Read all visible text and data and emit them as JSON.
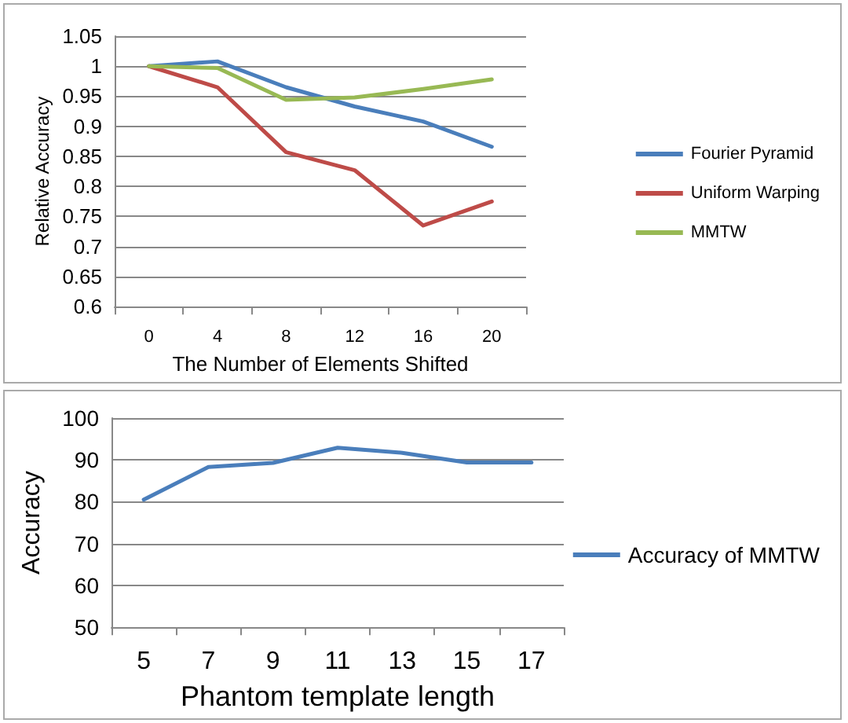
{
  "chart_data": [
    {
      "type": "line",
      "xlabel": "The Number of Elements Shifted",
      "ylabel": "Relative Accuracy",
      "categories": [
        "0",
        "4",
        "8",
        "12",
        "16",
        "20"
      ],
      "series": [
        {
          "name": "Fourier Pyramid",
          "color": "#4a7ebb",
          "values": [
            1,
            1.008,
            0.965,
            0.933,
            0.908,
            0.866
          ]
        },
        {
          "name": "Uniform Warping",
          "color": "#be4b48",
          "values": [
            1,
            0.965,
            0.857,
            0.827,
            0.735,
            0.775
          ]
        },
        {
          "name": "MMTW",
          "color": "#98b954",
          "values": [
            1,
            0.997,
            0.944,
            0.948,
            0.962,
            0.978
          ]
        }
      ],
      "ylim": [
        0.6,
        1.05
      ],
      "yticks": [
        0.6,
        0.65,
        0.7,
        0.75,
        0.8,
        0.85,
        0.9,
        0.95,
        1,
        1.05
      ],
      "grid": "y",
      "legend": "right"
    },
    {
      "type": "line",
      "xlabel": "Phantom template length",
      "ylabel": "Accuracy",
      "categories": [
        "5",
        "7",
        "9",
        "11",
        "13",
        "15",
        "17"
      ],
      "series": [
        {
          "name": "Accuracy of MMTW",
          "color": "#4a7ebb",
          "values": [
            80.5,
            88.3,
            89.3,
            92.9,
            91.7,
            89.4,
            89.4
          ]
        }
      ],
      "ylim": [
        50,
        100
      ],
      "yticks": [
        50,
        60,
        70,
        80,
        90,
        100
      ],
      "grid": "y",
      "legend": "right"
    }
  ]
}
